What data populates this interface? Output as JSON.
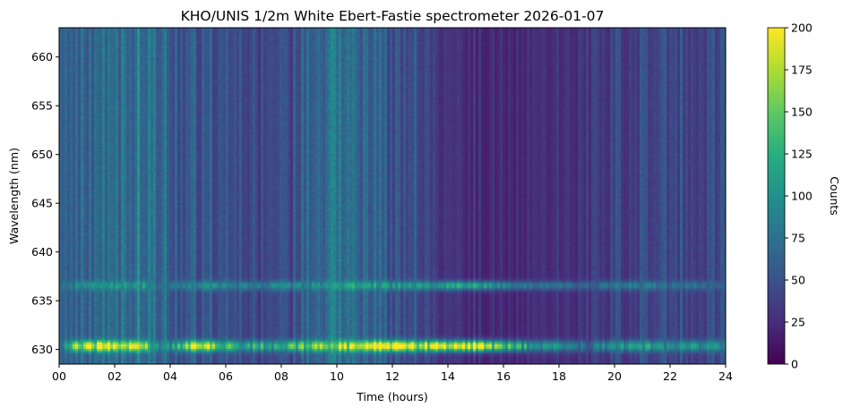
{
  "chart_data": {
    "type": "heatmap",
    "title": "KHO/UNIS 1/2m White Ebert-Fastie spectrometer 2026-01-07",
    "xlabel": "Time (hours)",
    "ylabel": "Wavelength (nm)",
    "xlim": [
      0,
      24
    ],
    "ylim": [
      628.5,
      663
    ],
    "x_ticks": [
      {
        "value": 0,
        "label": "00"
      },
      {
        "value": 2,
        "label": "02"
      },
      {
        "value": 4,
        "label": "04"
      },
      {
        "value": 6,
        "label": "06"
      },
      {
        "value": 8,
        "label": "08"
      },
      {
        "value": 10,
        "label": "10"
      },
      {
        "value": 12,
        "label": "12"
      },
      {
        "value": 14,
        "label": "14"
      },
      {
        "value": 16,
        "label": "16"
      },
      {
        "value": 18,
        "label": "18"
      },
      {
        "value": 20,
        "label": "20"
      },
      {
        "value": 22,
        "label": "22"
      },
      {
        "value": 24,
        "label": "24"
      }
    ],
    "y_ticks": [
      {
        "value": 630,
        "label": "630"
      },
      {
        "value": 635,
        "label": "635"
      },
      {
        "value": 640,
        "label": "640"
      },
      {
        "value": 645,
        "label": "645"
      },
      {
        "value": 650,
        "label": "650"
      },
      {
        "value": 655,
        "label": "655"
      },
      {
        "value": 660,
        "label": "660"
      }
    ],
    "colorbar": {
      "label": "Counts",
      "colormap": "viridis",
      "range": [
        0,
        200
      ],
      "ticks": [
        {
          "value": 0,
          "label": "0"
        },
        {
          "value": 25,
          "label": "25"
        },
        {
          "value": 50,
          "label": "50"
        },
        {
          "value": 75,
          "label": "75"
        },
        {
          "value": 100,
          "label": "100"
        },
        {
          "value": 125,
          "label": "125"
        },
        {
          "value": 150,
          "label": "150"
        },
        {
          "value": 175,
          "label": "175"
        },
        {
          "value": 200,
          "label": "200"
        }
      ]
    },
    "emission_lines_nm": [
      630.4,
      636.6
    ],
    "time_profile": {
      "hours": [
        0,
        0.5,
        1,
        1.5,
        2,
        2.5,
        3,
        3.5,
        4,
        4.5,
        5,
        5.5,
        6,
        6.5,
        7,
        7.5,
        8,
        8.5,
        9,
        9.5,
        10,
        10.5,
        11,
        11.5,
        12,
        12.5,
        13,
        13.5,
        14,
        14.5,
        15,
        15.5,
        16,
        16.5,
        17,
        17.5,
        18,
        18.5,
        19,
        19.5,
        20,
        20.5,
        21,
        21.5,
        22,
        22.5,
        23,
        23.5,
        24
      ],
      "background_counts": [
        60,
        62,
        68,
        70,
        72,
        78,
        80,
        62,
        66,
        60,
        55,
        52,
        48,
        45,
        42,
        40,
        42,
        50,
        68,
        72,
        70,
        66,
        62,
        60,
        58,
        55,
        52,
        35,
        30,
        28,
        28,
        26,
        26,
        25,
        25,
        26,
        28,
        30,
        33,
        36,
        40,
        42,
        45,
        45,
        46,
        47,
        48,
        48,
        48
      ],
      "line_630_peak_counts": [
        75,
        150,
        190,
        200,
        200,
        200,
        210,
        90,
        100,
        150,
        185,
        170,
        150,
        130,
        125,
        125,
        135,
        140,
        150,
        160,
        170,
        185,
        195,
        200,
        200,
        200,
        190,
        195,
        200,
        215,
        215,
        170,
        140,
        125,
        110,
        105,
        100,
        80,
        70,
        85,
        95,
        115,
        120,
        110,
        100,
        100,
        100,
        95,
        95
      ],
      "line_636_peak_counts": [
        60,
        90,
        100,
        100,
        105,
        110,
        115,
        70,
        80,
        90,
        100,
        95,
        90,
        85,
        85,
        85,
        90,
        95,
        95,
        100,
        110,
        115,
        110,
        108,
        105,
        105,
        105,
        110,
        115,
        120,
        120,
        100,
        90,
        85,
        80,
        80,
        75,
        70,
        65,
        70,
        75,
        85,
        85,
        80,
        75,
        75,
        75,
        72,
        72
      ]
    }
  }
}
